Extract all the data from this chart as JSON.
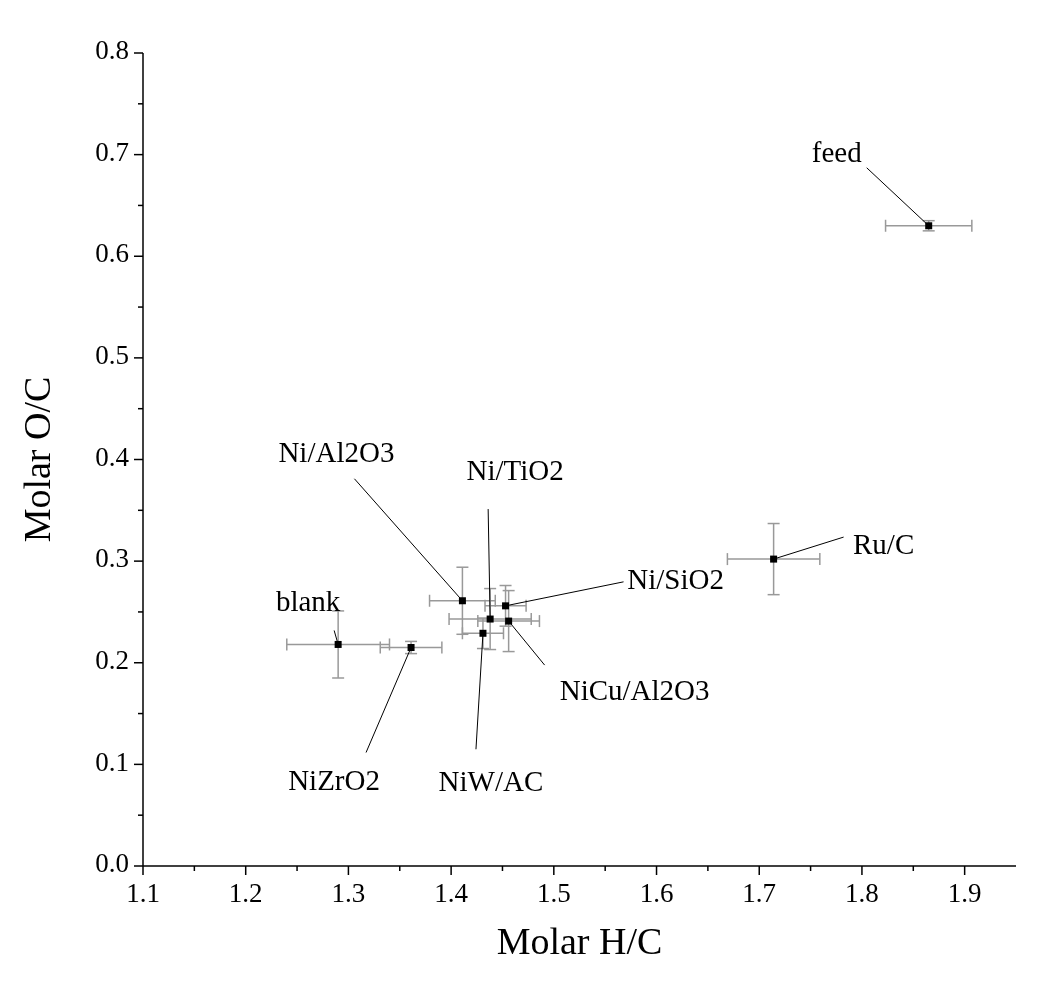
{
  "chart_data": {
    "type": "scatter",
    "xlabel": "Molar H/C",
    "ylabel": "Molar O/C",
    "x": [
      1.865,
      1.714,
      1.453,
      1.411,
      1.438,
      1.456,
      1.431,
      1.29,
      1.361
    ],
    "series": [
      {
        "color": "#000000",
        "marker": "square",
        "values": [
          0.63,
          0.302,
          0.256,
          0.261,
          0.243,
          0.241,
          0.229,
          0.218,
          0.215
        ],
        "errors": [
          0.005,
          0.035,
          0.02,
          0.033,
          0.03,
          0.03,
          0.015,
          0.033,
          0.006
        ],
        "xerrors": [
          0.042,
          0.045,
          0.02,
          0.032,
          0.04,
          0.03,
          0.02,
          0.05,
          0.03
        ]
      }
    ],
    "annotations": [
      {
        "text": "feed",
        "x": 1.865,
        "y": 0.63
      },
      {
        "text": "Ru/C",
        "x": 1.714,
        "y": 0.302
      },
      {
        "text": "Ni/SiO2",
        "x": 1.453,
        "y": 0.256
      },
      {
        "text": "Ni/Al2O3",
        "x": 1.411,
        "y": 0.261
      },
      {
        "text": "Ni/TiO2",
        "x": 1.438,
        "y": 0.243
      },
      {
        "text": "NiCu/Al2O3",
        "x": 1.456,
        "y": 0.241
      },
      {
        "text": "NiW/AC",
        "x": 1.431,
        "y": 0.229
      },
      {
        "text": "blank",
        "x": 1.29,
        "y": 0.218
      },
      {
        "text": "NiZrO2",
        "x": 1.361,
        "y": 0.215
      }
    ],
    "xlim": [
      1.1,
      1.95
    ],
    "xticks": [
      1.1,
      {
        "value": 1.15,
        "label": null
      },
      1.2,
      {
        "value": 1.25,
        "label": null
      },
      1.3,
      {
        "value": 1.35,
        "label": null
      },
      1.4,
      {
        "value": 1.45,
        "label": null
      },
      1.5,
      {
        "value": 1.55,
        "label": null
      },
      1.6,
      {
        "value": 1.65,
        "label": null
      },
      1.7,
      {
        "value": 1.75,
        "label": null
      },
      1.8,
      {
        "value": 1.85,
        "label": null
      },
      1.9
    ],
    "ylim": [
      0,
      0.8
    ],
    "yticks": [
      {
        "value": 0,
        "label": "0.0"
      },
      {
        "value": 0.05,
        "label": null
      },
      0.1,
      {
        "value": 0.15,
        "label": null
      },
      0.2,
      {
        "value": 0.25,
        "label": null
      },
      0.3,
      {
        "value": 0.35,
        "label": null
      },
      0.4,
      {
        "value": 0.45,
        "label": null
      },
      0.5,
      {
        "value": 0.55,
        "label": null
      },
      0.6,
      {
        "value": 0.65,
        "label": null
      },
      0.7,
      {
        "value": 0.75,
        "label": null
      },
      0.8
    ],
    "grid": false
  }
}
